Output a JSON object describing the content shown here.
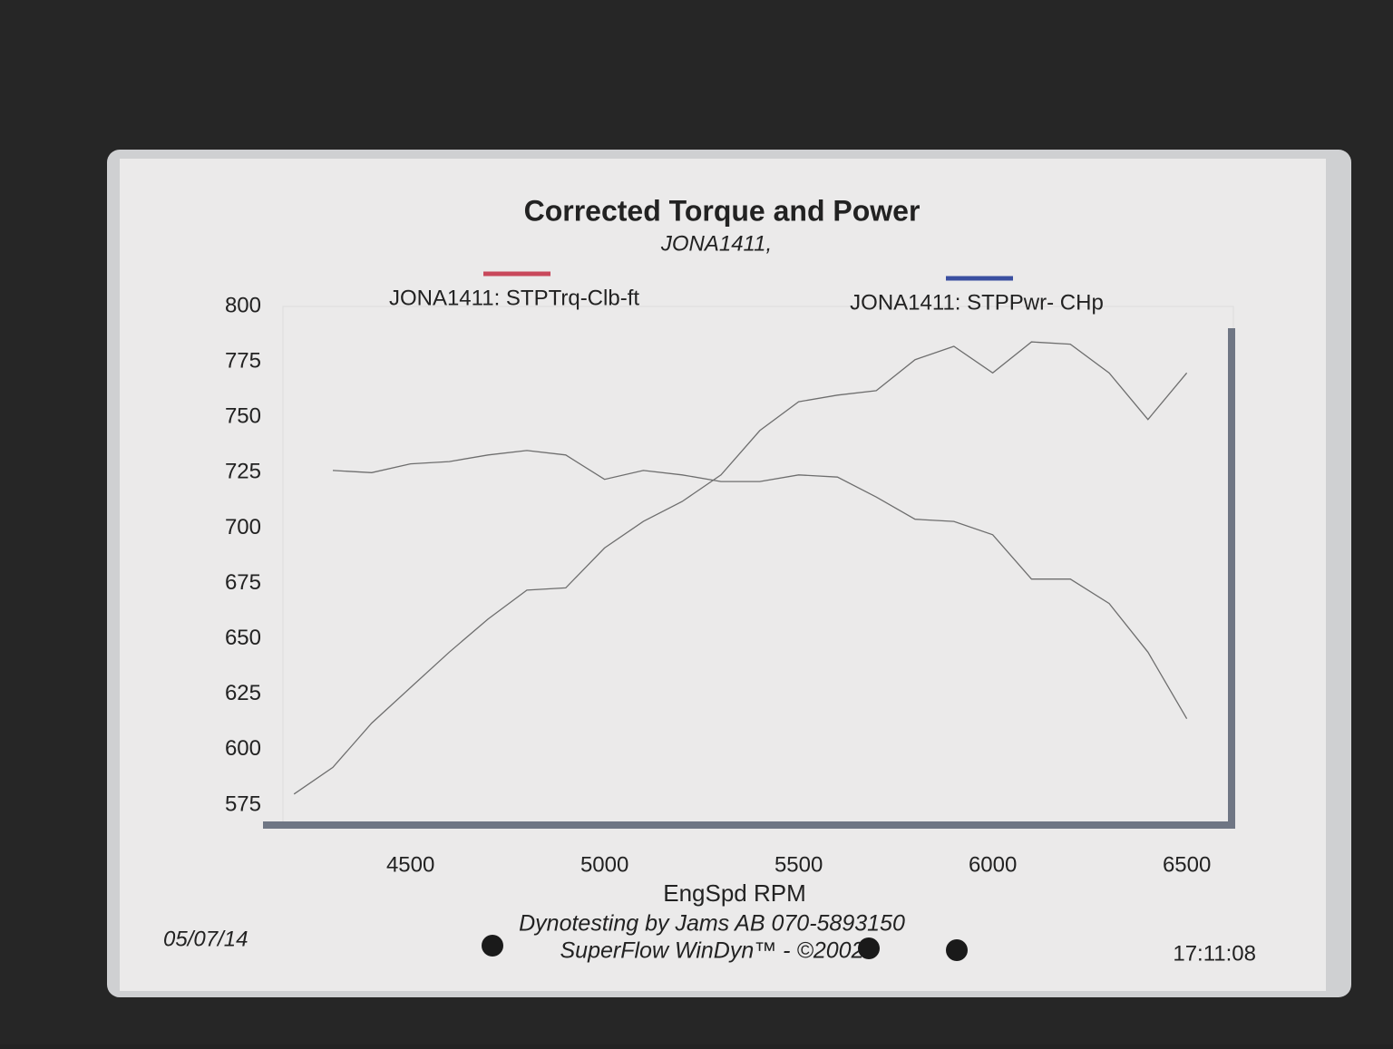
{
  "chart_data": {
    "type": "line",
    "title": "Corrected Torque and Power",
    "subtitle": "JONA1411,",
    "x_label": "EngSpd  RPM",
    "footer_lines": [
      "Dynotesting by Jams AB 070-5893150",
      "SuperFlow WinDyn™ - ©2002"
    ],
    "date": "05/07/14",
    "time": "17:11:08",
    "x": [
      4200,
      4300,
      4400,
      4500,
      4600,
      4700,
      4800,
      4900,
      5000,
      5100,
      5200,
      5300,
      5400,
      5500,
      5600,
      5700,
      5800,
      5900,
      6000,
      6100,
      6200,
      6300,
      6400,
      6500
    ],
    "series": [
      {
        "name": "JONA1411: STPTrq-Clb-ft",
        "color": "#c9485b",
        "values": [
          null,
          726,
          725,
          729,
          730,
          733,
          735,
          733,
          722,
          726,
          724,
          721,
          721,
          724,
          723,
          714,
          704,
          703,
          697,
          677,
          677,
          666,
          644,
          614
        ]
      },
      {
        "name": "JONA1411: STPPwr- CHp",
        "color": "#3a4fa0",
        "values": [
          580,
          592,
          612,
          628,
          644,
          659,
          672,
          673,
          691,
          703,
          712,
          724,
          744,
          757,
          760,
          762,
          776,
          782,
          770,
          784,
          783,
          770,
          749,
          770
        ]
      }
    ],
    "line_color": "#6e6e6e",
    "xlim": [
      4120,
      6620
    ],
    "xticks": [
      4500,
      5000,
      5500,
      6000,
      6500
    ],
    "ylim": [
      566,
      800
    ],
    "yticks": [
      575,
      600,
      625,
      650,
      675,
      700,
      725,
      750,
      775,
      800
    ],
    "grid": false
  }
}
